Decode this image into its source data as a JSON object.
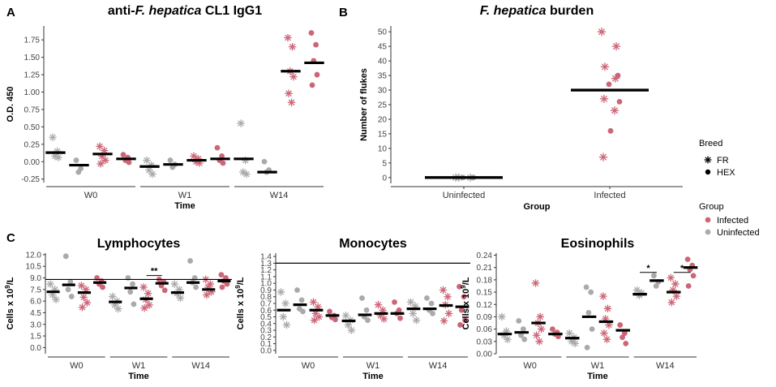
{
  "colors": {
    "infected": "#cc6677",
    "uninfected": "#aaaaaa",
    "median": "#000000",
    "axis": "#333333"
  },
  "legend": {
    "breed_title": "Breed",
    "breed_items": [
      {
        "label": "FR",
        "shape": "asterisk"
      },
      {
        "label": "HEX",
        "shape": "dot"
      }
    ],
    "group_title": "Group",
    "group_items": [
      {
        "label": "Infected",
        "color": "#cc6677"
      },
      {
        "label": "Uninfected",
        "color": "#aaaaaa"
      }
    ]
  },
  "chart_data": [
    {
      "panel": "A",
      "type": "scatter",
      "title_parts": [
        "anti-",
        "F. hepatica",
        " CL1 IgG1"
      ],
      "ylabel": "O.D. 450",
      "xlabel": "Time",
      "ylim": [
        -0.3,
        1.95
      ],
      "yticks": [
        -0.25,
        0.0,
        0.25,
        0.5,
        0.75,
        1.0,
        1.25,
        1.5,
        1.75
      ],
      "ytick_labels": [
        "-0.25",
        "0.00",
        "0.25",
        "0.50",
        "0.75",
        "1.00",
        "1.25",
        "1.50",
        "1.75"
      ],
      "groups": [
        "W0",
        "W1",
        "W14"
      ],
      "series": [
        {
          "group": "W0",
          "breed": "FR",
          "status": "Uninfected",
          "median": 0.13,
          "points": [
            0.35,
            0.15,
            0.08,
            0.06
          ]
        },
        {
          "group": "W0",
          "breed": "HEX",
          "status": "Uninfected",
          "median": -0.05,
          "points": [
            0.02,
            -0.1,
            -0.15
          ]
        },
        {
          "group": "W0",
          "breed": "FR",
          "status": "Infected",
          "median": 0.11,
          "points": [
            0.22,
            0.16,
            0.08,
            0.02,
            -0.03
          ]
        },
        {
          "group": "W0",
          "breed": "HEX",
          "status": "Infected",
          "median": 0.04,
          "points": [
            0.1,
            0.06,
            0.02,
            -0.01
          ]
        },
        {
          "group": "W1",
          "breed": "FR",
          "status": "Uninfected",
          "median": -0.07,
          "points": [
            0.02,
            -0.05,
            -0.12,
            -0.18
          ]
        },
        {
          "group": "W1",
          "breed": "HEX",
          "status": "Uninfected",
          "median": -0.04,
          "points": [
            0.02,
            -0.04,
            -0.08
          ]
        },
        {
          "group": "W1",
          "breed": "FR",
          "status": "Infected",
          "median": 0.02,
          "points": [
            0.08,
            0.04,
            0.0,
            -0.02
          ]
        },
        {
          "group": "W1",
          "breed": "HEX",
          "status": "Infected",
          "median": 0.04,
          "points": [
            0.2,
            0.08,
            0.02,
            -0.02
          ]
        },
        {
          "group": "W14",
          "breed": "FR",
          "status": "Uninfected",
          "median": 0.04,
          "points": [
            0.55,
            0.02,
            -0.15,
            -0.18
          ]
        },
        {
          "group": "W14",
          "breed": "HEX",
          "status": "Uninfected",
          "median": -0.15,
          "points": [
            0.0,
            -0.12,
            -0.15
          ]
        },
        {
          "group": "W14",
          "breed": "FR",
          "status": "Infected",
          "median": 1.3,
          "points": [
            1.78,
            1.65,
            1.3,
            1.22,
            0.98,
            0.85
          ]
        },
        {
          "group": "W14",
          "breed": "HEX",
          "status": "Infected",
          "median": 1.42,
          "points": [
            1.85,
            1.68,
            1.45,
            1.25,
            1.1
          ]
        }
      ]
    },
    {
      "panel": "B",
      "type": "scatter",
      "title_parts": [
        "",
        "F. hepatica",
        " burden"
      ],
      "ylabel": "Number of flukes",
      "xlabel": "Group",
      "ylim": [
        -2,
        52
      ],
      "yticks": [
        0,
        5,
        10,
        15,
        20,
        25,
        30,
        35,
        40,
        45,
        50
      ],
      "ytick_labels": [
        "0",
        "5",
        "10",
        "15",
        "20",
        "25",
        "30",
        "35",
        "40",
        "45",
        "50"
      ],
      "categories": [
        "Uninfected",
        "Infected"
      ],
      "series": [
        {
          "category": "Uninfected",
          "status": "Uninfected",
          "median": 0,
          "points_fr": [
            0,
            0,
            0
          ],
          "points_hex": [
            0,
            0,
            0
          ]
        },
        {
          "category": "Infected",
          "status": "Infected",
          "median": 30,
          "points_fr": [
            50,
            45,
            38,
            34,
            27,
            23,
            7
          ],
          "points_hex": [
            35,
            32,
            26,
            16
          ]
        }
      ]
    },
    {
      "panel": "C1",
      "type": "scatter",
      "title": "Lymphocytes",
      "ylabel": "Cells x 10^9/L",
      "xlabel": "Time",
      "ylim": [
        -0.8,
        12.2
      ],
      "hline": 8.8,
      "yticks": [
        0,
        1.5,
        3,
        4.5,
        6,
        7.5,
        9,
        10.5,
        12
      ],
      "ytick_labels": [
        "0.0",
        "1.5",
        "3.0",
        "4.5",
        "6.0",
        "7.5",
        "9.0",
        "10.5",
        "12.0"
      ],
      "groups": [
        "W0",
        "W1",
        "W14"
      ],
      "significance": [
        {
          "group": "W1",
          "from": 2,
          "to": 3,
          "label": "**",
          "y": 9.3
        }
      ],
      "series": [
        {
          "group": "W0",
          "breed": "FR",
          "status": "Uninfected",
          "median": 7.2,
          "points": [
            8.2,
            7.5,
            6.8,
            6.2
          ]
        },
        {
          "group": "W0",
          "breed": "HEX",
          "status": "Uninfected",
          "median": 8.1,
          "points": [
            11.8,
            8.5,
            7.5,
            6.6
          ]
        },
        {
          "group": "W0",
          "breed": "FR",
          "status": "Infected",
          "median": 7.1,
          "points": [
            8.0,
            7.5,
            6.5,
            5.8,
            5.2
          ]
        },
        {
          "group": "W0",
          "breed": "HEX",
          "status": "Infected",
          "median": 8.4,
          "points": [
            9.0,
            8.6,
            8.2,
            7.8
          ]
        },
        {
          "group": "W1",
          "breed": "FR",
          "status": "Uninfected",
          "median": 5.9,
          "points": [
            6.6,
            6.0,
            5.5,
            5.0
          ]
        },
        {
          "group": "W1",
          "breed": "HEX",
          "status": "Uninfected",
          "median": 7.7,
          "points": [
            9.0,
            8.2,
            7.2,
            5.6
          ]
        },
        {
          "group": "W1",
          "breed": "FR",
          "status": "Infected",
          "median": 6.3,
          "points": [
            7.8,
            7.0,
            6.2,
            5.5,
            5.1
          ]
        },
        {
          "group": "W1",
          "breed": "HEX",
          "status": "Infected",
          "median": 8.3,
          "points": [
            8.8,
            8.5,
            8.0,
            7.4
          ]
        },
        {
          "group": "W14",
          "breed": "FR",
          "status": "Uninfected",
          "median": 7.1,
          "points": [
            8.2,
            7.5,
            7.0,
            6.4
          ]
        },
        {
          "group": "W14",
          "breed": "HEX",
          "status": "Uninfected",
          "median": 8.4,
          "points": [
            11.2,
            9.0,
            8.4,
            7.8
          ]
        },
        {
          "group": "W14",
          "breed": "FR",
          "status": "Infected",
          "median": 7.5,
          "points": [
            8.8,
            8.2,
            7.8,
            7.2,
            6.8
          ]
        },
        {
          "group": "W14",
          "breed": "HEX",
          "status": "Infected",
          "median": 8.6,
          "points": [
            9.4,
            9.0,
            8.6,
            8.2,
            7.8
          ]
        }
      ]
    },
    {
      "panel": "C2",
      "type": "scatter",
      "title": "Monocytes",
      "ylabel": "Cells x 10^9/L",
      "xlabel": "Time",
      "ylim": [
        -0.05,
        1.45
      ],
      "hline": 1.3,
      "yticks": [
        0,
        0.1,
        0.2,
        0.3,
        0.4,
        0.5,
        0.6,
        0.7,
        0.8,
        0.9,
        1.0,
        1.1,
        1.2,
        1.3,
        1.4
      ],
      "ytick_labels": [
        "0.0",
        "0.1",
        "0.2",
        "0.3",
        "0.4",
        "0.5",
        "0.6",
        "0.7",
        "0.8",
        "0.9",
        "1.0",
        "1.1",
        "1.2",
        "1.3",
        "1.4"
      ],
      "groups": [
        "W0",
        "W1",
        "W14"
      ],
      "series": [
        {
          "group": "W0",
          "breed": "FR",
          "status": "Uninfected",
          "median": 0.6,
          "points": [
            0.87,
            0.7,
            0.5,
            0.38
          ]
        },
        {
          "group": "W0",
          "breed": "HEX",
          "status": "Uninfected",
          "median": 0.68,
          "points": [
            0.9,
            0.75,
            0.62,
            0.58
          ]
        },
        {
          "group": "W0",
          "breed": "FR",
          "status": "Infected",
          "median": 0.6,
          "points": [
            0.72,
            0.65,
            0.55,
            0.5,
            0.45
          ]
        },
        {
          "group": "W0",
          "breed": "HEX",
          "status": "Infected",
          "median": 0.52,
          "points": [
            0.58,
            0.52,
            0.49,
            0.46
          ]
        },
        {
          "group": "W1",
          "breed": "FR",
          "status": "Uninfected",
          "median": 0.44,
          "points": [
            0.52,
            0.45,
            0.38,
            0.3
          ]
        },
        {
          "group": "W1",
          "breed": "HEX",
          "status": "Uninfected",
          "median": 0.53,
          "points": [
            0.78,
            0.6,
            0.5,
            0.45
          ]
        },
        {
          "group": "W1",
          "breed": "FR",
          "status": "Infected",
          "median": 0.55,
          "points": [
            0.68,
            0.6,
            0.52,
            0.47
          ]
        },
        {
          "group": "W1",
          "breed": "HEX",
          "status": "Infected",
          "median": 0.55,
          "points": [
            0.72,
            0.6,
            0.55,
            0.48
          ]
        },
        {
          "group": "W14",
          "breed": "FR",
          "status": "Uninfected",
          "median": 0.62,
          "points": [
            0.72,
            0.66,
            0.55,
            0.45
          ]
        },
        {
          "group": "W14",
          "breed": "HEX",
          "status": "Uninfected",
          "median": 0.62,
          "points": [
            0.78,
            0.7,
            0.6,
            0.55
          ]
        },
        {
          "group": "W14",
          "breed": "FR",
          "status": "Infected",
          "median": 0.67,
          "points": [
            0.9,
            0.8,
            0.68,
            0.55,
            0.44
          ]
        },
        {
          "group": "W14",
          "breed": "HEX",
          "status": "Infected",
          "median": 0.65,
          "points": [
            0.95,
            0.8,
            0.6,
            0.45,
            0.38
          ]
        }
      ]
    },
    {
      "panel": "C3",
      "type": "scatter",
      "title": "Eosinophils",
      "ylabel": "Cells x 10^9/L",
      "xlabel": "Time",
      "ylim": [
        0,
        0.245
      ],
      "yticks": [
        0.0,
        0.03,
        0.06,
        0.09,
        0.12,
        0.15,
        0.18,
        0.21,
        0.24
      ],
      "ytick_labels": [
        "0.00",
        "0.03",
        "0.06",
        "0.09",
        "0.12",
        "0.15",
        "0.18",
        "0.21",
        "0.24"
      ],
      "groups": [
        "W0",
        "W1",
        "W14"
      ],
      "significance": [
        {
          "group": "W14",
          "from": 0,
          "to": 1,
          "label": "*",
          "y": 0.198
        },
        {
          "group": "W14",
          "from": 2,
          "to": 3,
          "label": "*",
          "y": 0.198
        }
      ],
      "series": [
        {
          "group": "W0",
          "breed": "FR",
          "status": "Uninfected",
          "median": 0.048,
          "points": [
            0.09,
            0.055,
            0.045,
            0.035
          ]
        },
        {
          "group": "W0",
          "breed": "HEX",
          "status": "Uninfected",
          "median": 0.052,
          "points": [
            0.08,
            0.06,
            0.045,
            0.035
          ]
        },
        {
          "group": "W0",
          "breed": "FR",
          "status": "Infected",
          "median": 0.075,
          "points": [
            0.172,
            0.09,
            0.075,
            0.06,
            0.045,
            0.03
          ]
        },
        {
          "group": "W0",
          "breed": "HEX",
          "status": "Infected",
          "median": 0.048,
          "points": [
            0.06,
            0.052,
            0.048,
            0.042
          ]
        },
        {
          "group": "W1",
          "breed": "FR",
          "status": "Uninfected",
          "median": 0.038,
          "points": [
            0.05,
            0.04,
            0.03,
            0.025
          ]
        },
        {
          "group": "W1",
          "breed": "HEX",
          "status": "Uninfected",
          "median": 0.09,
          "points": [
            0.162,
            0.15,
            0.1,
            0.06,
            0.015
          ]
        },
        {
          "group": "W1",
          "breed": "FR",
          "status": "Infected",
          "median": 0.078,
          "points": [
            0.14,
            0.11,
            0.085,
            0.07,
            0.05,
            0.035
          ]
        },
        {
          "group": "W1",
          "breed": "HEX",
          "status": "Infected",
          "median": 0.057,
          "points": [
            0.07,
            0.05,
            0.04,
            0.025
          ]
        },
        {
          "group": "W14",
          "breed": "FR",
          "status": "Uninfected",
          "median": 0.145,
          "points": [
            0.155,
            0.148,
            0.142
          ]
        },
        {
          "group": "W14",
          "breed": "HEX",
          "status": "Uninfected",
          "median": 0.178,
          "points": [
            0.19,
            0.175,
            0.165
          ]
        },
        {
          "group": "W14",
          "breed": "FR",
          "status": "Infected",
          "median": 0.15,
          "points": [
            0.185,
            0.17,
            0.155,
            0.14,
            0.125
          ]
        },
        {
          "group": "W14",
          "breed": "HEX",
          "status": "Infected",
          "median": 0.21,
          "points": [
            0.23,
            0.215,
            0.205,
            0.19,
            0.165
          ]
        }
      ]
    }
  ]
}
